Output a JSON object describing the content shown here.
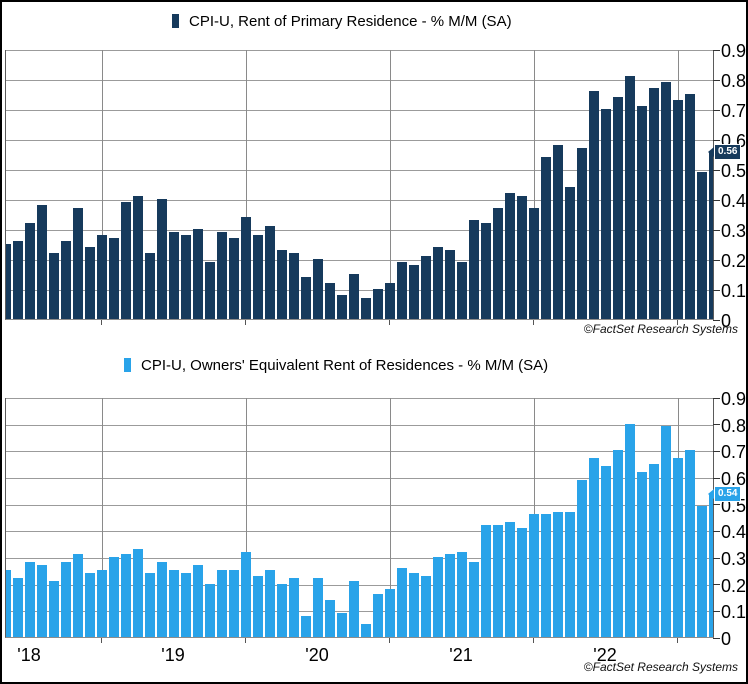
{
  "chart_data": [
    {
      "type": "bar",
      "title": "CPI-U, Rent of Primary Residence - % M/M (SA)",
      "bar_color": "#163A5C",
      "copyright": "©FactSet Research Systems",
      "callout_label": "0.56",
      "callout_value": 0.56,
      "ylim": [
        0,
        0.9
      ],
      "y_tick_labels": [
        "0.9",
        "0.8",
        "0.7",
        "0.6",
        "0.5",
        "0.4",
        "0.3",
        "0.2",
        "0.1",
        "0"
      ],
      "grid": true,
      "legend_position": "top-center",
      "x_year_labels": [
        "'18",
        "'19",
        "'20",
        "'21",
        "'22"
      ],
      "show_x_labels": false,
      "categories": [
        "2018-05",
        "2018-06",
        "2018-07",
        "2018-08",
        "2018-09",
        "2018-10",
        "2018-11",
        "2018-12",
        "2019-01",
        "2019-02",
        "2019-03",
        "2019-04",
        "2019-05",
        "2019-06",
        "2019-07",
        "2019-08",
        "2019-09",
        "2019-10",
        "2019-11",
        "2019-12",
        "2020-01",
        "2020-02",
        "2020-03",
        "2020-04",
        "2020-05",
        "2020-06",
        "2020-07",
        "2020-08",
        "2020-09",
        "2020-10",
        "2020-11",
        "2020-12",
        "2021-01",
        "2021-02",
        "2021-03",
        "2021-04",
        "2021-05",
        "2021-06",
        "2021-07",
        "2021-08",
        "2021-09",
        "2021-10",
        "2021-11",
        "2021-12",
        "2022-01",
        "2022-02",
        "2022-03",
        "2022-04",
        "2022-05",
        "2022-06",
        "2022-07",
        "2022-08",
        "2022-09",
        "2022-10",
        "2022-11",
        "2022-12",
        "2023-01",
        "2023-02",
        "2023-03",
        "2023-04"
      ],
      "values": [
        0.25,
        0.26,
        0.32,
        0.38,
        0.22,
        0.26,
        0.37,
        0.24,
        0.28,
        0.27,
        0.39,
        0.41,
        0.22,
        0.4,
        0.29,
        0.28,
        0.3,
        0.19,
        0.29,
        0.27,
        0.34,
        0.28,
        0.31,
        0.23,
        0.22,
        0.14,
        0.2,
        0.12,
        0.08,
        0.15,
        0.07,
        0.1,
        0.12,
        0.19,
        0.18,
        0.21,
        0.24,
        0.23,
        0.19,
        0.33,
        0.32,
        0.37,
        0.42,
        0.41,
        0.37,
        0.54,
        0.58,
        0.44,
        0.57,
        0.76,
        0.7,
        0.74,
        0.81,
        0.71,
        0.77,
        0.79,
        0.73,
        0.75,
        0.49,
        0.56
      ]
    },
    {
      "type": "bar",
      "title": "CPI-U, Owners' Equivalent Rent of Residences - % M/M (SA)",
      "bar_color": "#29A3E9",
      "copyright": "©FactSet Research Systems",
      "callout_label": "0.54",
      "callout_value": 0.54,
      "ylim": [
        0,
        0.9
      ],
      "y_tick_labels": [
        "0.9",
        "0.8",
        "0.7",
        "0.6",
        "0.5",
        "0.4",
        "0.3",
        "0.2",
        "0.1",
        "0"
      ],
      "grid": true,
      "legend_position": "top-center",
      "x_year_labels": [
        "'18",
        "'19",
        "'20",
        "'21",
        "'22"
      ],
      "show_x_labels": true,
      "categories": [
        "2018-05",
        "2018-06",
        "2018-07",
        "2018-08",
        "2018-09",
        "2018-10",
        "2018-11",
        "2018-12",
        "2019-01",
        "2019-02",
        "2019-03",
        "2019-04",
        "2019-05",
        "2019-06",
        "2019-07",
        "2019-08",
        "2019-09",
        "2019-10",
        "2019-11",
        "2019-12",
        "2020-01",
        "2020-02",
        "2020-03",
        "2020-04",
        "2020-05",
        "2020-06",
        "2020-07",
        "2020-08",
        "2020-09",
        "2020-10",
        "2020-11",
        "2020-12",
        "2021-01",
        "2021-02",
        "2021-03",
        "2021-04",
        "2021-05",
        "2021-06",
        "2021-07",
        "2021-08",
        "2021-09",
        "2021-10",
        "2021-11",
        "2021-12",
        "2022-01",
        "2022-02",
        "2022-03",
        "2022-04",
        "2022-05",
        "2022-06",
        "2022-07",
        "2022-08",
        "2022-09",
        "2022-10",
        "2022-11",
        "2022-12",
        "2023-01",
        "2023-02",
        "2023-03",
        "2023-04"
      ],
      "values": [
        0.25,
        0.22,
        0.28,
        0.27,
        0.21,
        0.28,
        0.31,
        0.24,
        0.25,
        0.3,
        0.31,
        0.33,
        0.24,
        0.28,
        0.25,
        0.24,
        0.27,
        0.2,
        0.25,
        0.25,
        0.32,
        0.23,
        0.25,
        0.2,
        0.22,
        0.08,
        0.22,
        0.14,
        0.09,
        0.21,
        0.05,
        0.16,
        0.18,
        0.26,
        0.24,
        0.23,
        0.3,
        0.31,
        0.32,
        0.28,
        0.42,
        0.42,
        0.43,
        0.41,
        0.46,
        0.46,
        0.47,
        0.47,
        0.59,
        0.67,
        0.64,
        0.7,
        0.8,
        0.62,
        0.65,
        0.79,
        0.67,
        0.7,
        0.49,
        0.54
      ]
    }
  ],
  "axes": {
    "year_tick_month_indices": [
      8,
      20,
      32,
      44,
      56
    ],
    "year_label_month_indices": [
      2,
      14,
      26,
      38,
      50
    ]
  }
}
